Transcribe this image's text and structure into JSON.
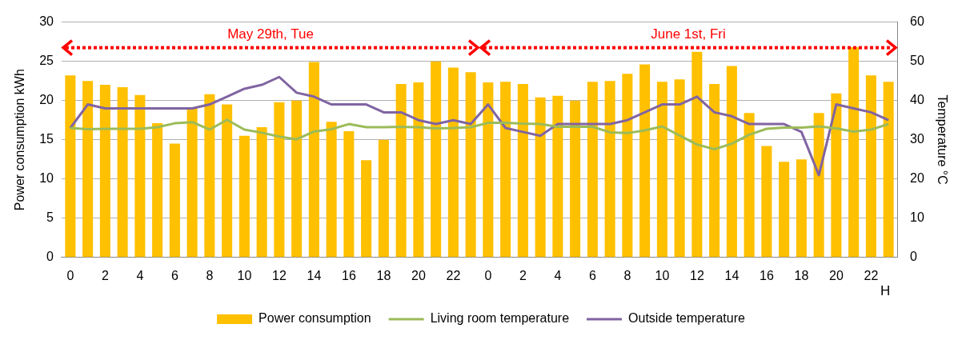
{
  "chart_data": {
    "type": "bar",
    "categories": [
      "0",
      null,
      "2",
      null,
      "4",
      null,
      "6",
      null,
      "8",
      null,
      "10",
      null,
      "12",
      null,
      "14",
      null,
      "16",
      null,
      "18",
      null,
      "20",
      null,
      "22",
      null,
      "0",
      null,
      "2",
      null,
      "4",
      null,
      "6",
      null,
      "8",
      null,
      "10",
      null,
      "12",
      null,
      "14",
      null,
      "16",
      null,
      "18",
      null,
      "20",
      null,
      "22",
      null
    ],
    "series": [
      {
        "name": "Power consumption",
        "color": "#ffc000",
        "values": [
          23.2,
          22.5,
          22.0,
          21.7,
          20.7,
          17.1,
          14.5,
          19.0,
          20.8,
          19.5,
          15.5,
          16.6,
          19.8,
          20.0,
          24.9,
          17.3,
          16.1,
          12.4,
          15.0,
          22.1,
          22.3,
          25.0,
          24.2,
          23.6,
          22.3,
          22.4,
          22.1,
          20.4,
          20.6,
          20.0,
          22.4,
          22.5,
          23.4,
          24.6,
          22.4,
          22.7,
          26.2,
          22.1,
          24.4,
          18.4,
          14.2,
          12.2,
          12.5,
          18.4,
          20.9,
          26.8,
          23.2,
          22.4
        ]
      },
      {
        "name": "Living room temperature",
        "type": "line",
        "axis": "y2",
        "color": "#9bbb59",
        "values": [
          33,
          32.7,
          32.8,
          32.8,
          32.8,
          33.2,
          34.2,
          34.5,
          32.6,
          35.1,
          32.6,
          31.8,
          30.8,
          30.1,
          32.1,
          32.7,
          34.0,
          33.2,
          33.2,
          33.3,
          33.2,
          32.9,
          33.0,
          33.2,
          34.3,
          34.3,
          34.1,
          34.0,
          33.3,
          33.3,
          33.3,
          31.9,
          31.7,
          32.4,
          33.4,
          31.1,
          28.8,
          27.6,
          29.0,
          31.3,
          32.8,
          33.1,
          33.1,
          33.4,
          32.9,
          32.1,
          32.6,
          34.0
        ]
      },
      {
        "name": "Outside temperature",
        "type": "line",
        "axis": "y2",
        "color": "#8064a2",
        "values": [
          33,
          39,
          38,
          38,
          38,
          38,
          38,
          38,
          39,
          41,
          43,
          44,
          46,
          42,
          41,
          39,
          39,
          39,
          37,
          37,
          35,
          34,
          35,
          34,
          39,
          33,
          32,
          31,
          34,
          34,
          34,
          34,
          35,
          37,
          39,
          39,
          41,
          37,
          36,
          34,
          34,
          34,
          32,
          21,
          39,
          38,
          37,
          35
        ]
      }
    ],
    "ylabel": "Power consumption kWh",
    "y2label": "Temperature °C",
    "xlabel": "H",
    "ylim": [
      0,
      30
    ],
    "yticks": [
      0,
      5,
      10,
      15,
      20,
      25,
      30
    ],
    "y2lim": [
      0,
      60
    ],
    "y2ticks": [
      0,
      10,
      20,
      30,
      40,
      50,
      60
    ],
    "annotations": [
      "May 29th, Tue",
      "June 1st, Fri"
    ],
    "grid": "y",
    "legend": "bottom",
    "marker": "none"
  }
}
